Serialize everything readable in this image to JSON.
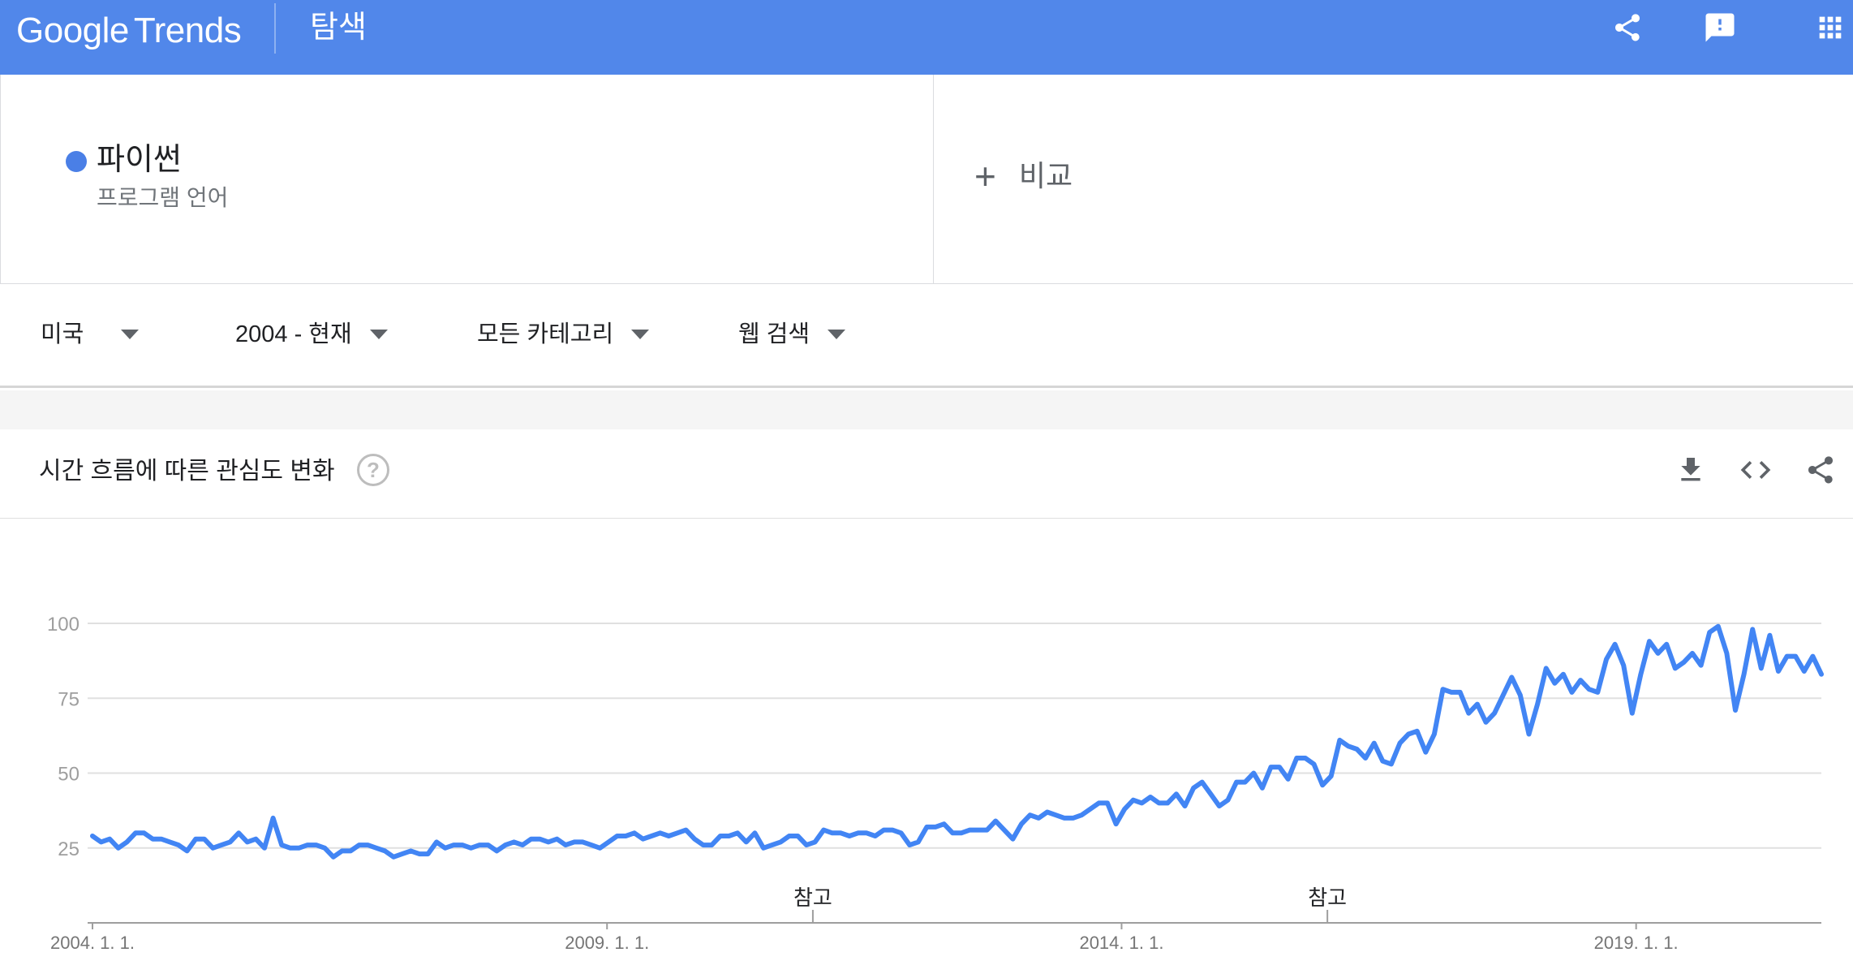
{
  "app": {
    "logo_google": "Google",
    "logo_trends": "Trends",
    "page_title": "탐색",
    "icons": [
      "share-icon",
      "feedback-icon",
      "apps-icon"
    ]
  },
  "term": {
    "name": "파이썬",
    "type": "프로그램 언어",
    "color": "#4a7fe6"
  },
  "compare": {
    "label": "비교"
  },
  "filters": {
    "region": "미국",
    "time": "2004 - 현재",
    "category": "모든 카테고리",
    "search_type": "웹 검색"
  },
  "chart_card": {
    "title": "시간 흐름에 따른 관심도 변화",
    "help": "?",
    "icons": [
      "download-icon",
      "embed-icon",
      "share-icon"
    ]
  },
  "chart_data": {
    "type": "line",
    "title": "",
    "ylim": [
      0,
      100
    ],
    "yticks": [
      25,
      50,
      75,
      100
    ],
    "x_ticks": [
      {
        "label": "2004. 1. 1.",
        "x": 2004.0
      },
      {
        "label": "2009. 1. 1.",
        "x": 2009.0
      },
      {
        "label": "2014. 1. 1.",
        "x": 2014.0
      },
      {
        "label": "2019. 1. 1.",
        "x": 2019.0
      }
    ],
    "x_range": [
      2004.0,
      2020.8
    ],
    "annotations": [
      {
        "label": "참고",
        "x": 2011.0
      },
      {
        "label": "참고",
        "x": 2016.0
      }
    ],
    "grid": true,
    "line_color": "#4285f4",
    "series": [
      {
        "values": [
          29,
          27,
          28,
          25,
          27,
          30,
          30,
          28,
          28,
          27,
          26,
          24,
          28,
          28,
          25,
          26,
          27,
          30,
          27,
          28,
          25,
          35,
          26,
          25,
          25,
          26,
          26,
          25,
          22,
          24,
          24,
          26,
          26,
          25,
          24,
          22,
          23,
          24,
          23,
          23,
          27,
          25,
          26,
          26,
          25,
          26,
          26,
          24,
          26,
          27,
          26,
          28,
          28,
          27,
          28,
          26,
          27,
          27,
          26,
          25,
          27,
          29,
          29,
          30,
          28,
          29,
          30,
          29,
          30,
          31,
          28,
          26,
          26,
          29,
          29,
          30,
          27,
          30,
          25,
          26,
          27,
          29,
          29,
          26,
          27,
          31,
          30,
          30,
          29,
          30,
          30,
          29,
          31,
          31,
          30,
          26,
          27,
          32,
          32,
          33,
          30,
          30,
          31,
          31,
          31,
          34,
          31,
          28,
          33,
          36,
          35,
          37,
          36,
          35,
          35,
          36,
          38,
          40,
          40,
          33,
          38,
          41,
          40,
          42,
          40,
          40,
          43,
          39,
          45,
          47,
          43,
          39,
          41,
          47,
          47,
          50,
          45,
          52,
          52,
          48,
          55,
          55,
          53,
          46,
          49,
          61,
          59,
          58,
          55,
          60,
          54,
          53,
          60,
          63,
          64,
          57,
          63,
          78,
          77,
          77,
          70,
          73,
          67,
          70,
          76,
          82,
          76,
          63,
          73,
          85,
          80,
          83,
          77,
          81,
          78,
          77,
          88,
          93,
          86,
          70,
          83,
          94,
          90,
          93,
          85,
          87,
          90,
          86,
          97,
          99,
          90,
          71,
          83,
          98,
          85,
          96,
          84,
          89,
          89,
          84,
          89,
          83
        ]
      }
    ]
  }
}
